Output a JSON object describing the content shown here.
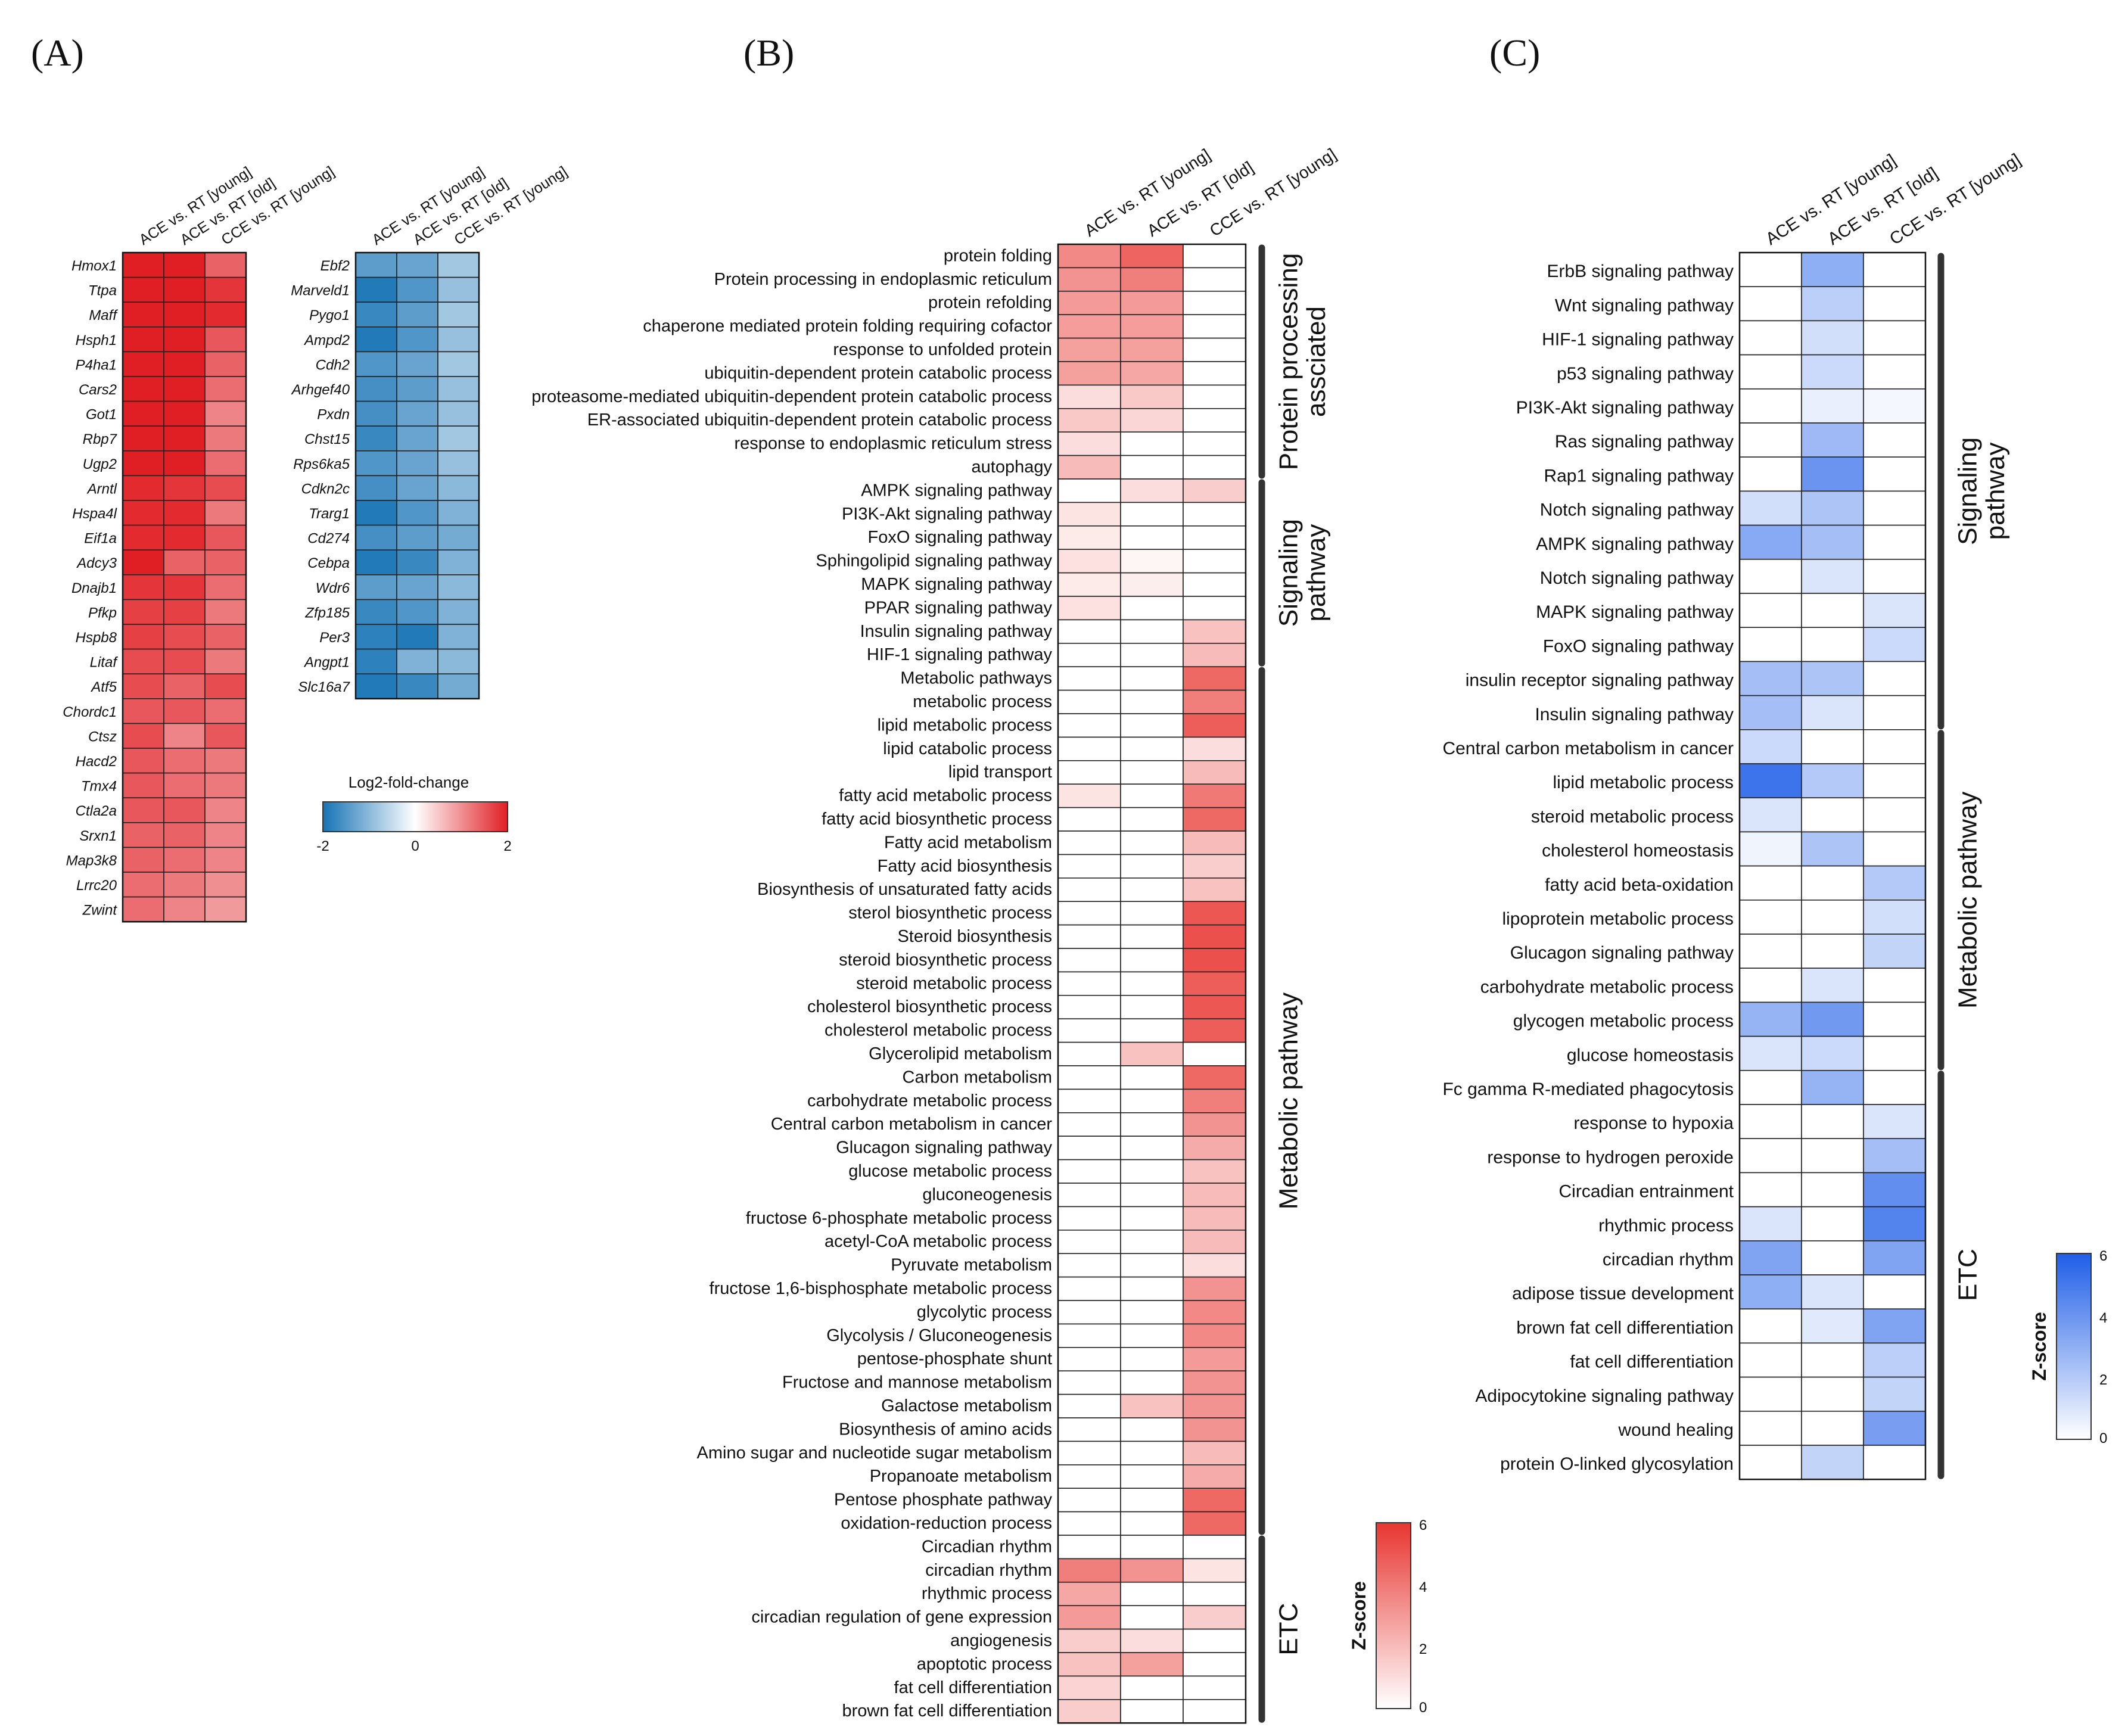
{
  "panel_labels": [
    "(A)",
    "(B)",
    "(C)"
  ],
  "chart_data": [
    {
      "id": "A_up",
      "type": "heatmap",
      "columns": [
        "ACE vs. RT [young]",
        "ACE vs. RT [old]",
        "CCE vs. RT [young]"
      ],
      "rows": [
        "Hmox1",
        "Ttpa",
        "Maff",
        "Hsph1",
        "P4ha1",
        "Cars2",
        "Got1",
        "Rbp7",
        "Ugp2",
        "Arntl",
        "Hspa4l",
        "Eif1a",
        "Adcy3",
        "Dnajb1",
        "Pfkp",
        "Hspb8",
        "Litaf",
        "Atf5",
        "Chordc1",
        "Ctsz",
        "Hacd2",
        "Tmx4",
        "Ctla2a",
        "Srxn1",
        "Map3k8",
        "Lrrc20",
        "Zwint"
      ],
      "values": [
        [
          2.0,
          2.0,
          1.4
        ],
        [
          2.0,
          2.0,
          1.8
        ],
        [
          2.0,
          2.0,
          1.9
        ],
        [
          2.0,
          2.0,
          1.5
        ],
        [
          2.0,
          2.0,
          1.4
        ],
        [
          2.0,
          2.0,
          1.3
        ],
        [
          2.0,
          2.0,
          1.1
        ],
        [
          2.0,
          2.0,
          1.2
        ],
        [
          2.0,
          2.0,
          1.3
        ],
        [
          1.9,
          1.8,
          1.6
        ],
        [
          1.9,
          1.9,
          1.2
        ],
        [
          1.9,
          1.9,
          1.5
        ],
        [
          2.0,
          1.4,
          1.4
        ],
        [
          1.8,
          1.8,
          1.3
        ],
        [
          1.7,
          1.7,
          1.2
        ],
        [
          1.7,
          1.6,
          1.4
        ],
        [
          1.6,
          1.6,
          1.2
        ],
        [
          1.6,
          1.4,
          1.6
        ],
        [
          1.5,
          1.5,
          1.3
        ],
        [
          1.6,
          1.1,
          1.5
        ],
        [
          1.5,
          1.3,
          1.2
        ],
        [
          1.5,
          1.3,
          1.2
        ],
        [
          1.5,
          1.5,
          1.1
        ],
        [
          1.4,
          1.4,
          1.1
        ],
        [
          1.4,
          1.3,
          1.1
        ],
        [
          1.3,
          1.2,
          1.0
        ],
        [
          1.3,
          1.1,
          0.9
        ]
      ]
    },
    {
      "id": "A_down",
      "type": "heatmap",
      "columns": [
        "ACE vs. RT [young]",
        "ACE vs. RT [old]",
        "CCE vs. RT [young]"
      ],
      "rows": [
        "Ebf2",
        "Marveld1",
        "Pygo1",
        "Ampd2",
        "Cdh2",
        "Arhgef40",
        "Pxdn",
        "Chst15",
        "Rps6ka5",
        "Cdkn2c",
        "Trarg1",
        "Cd274",
        "Cebpa",
        "Wdr6",
        "Zfp185",
        "Per3",
        "Angpt1",
        "Slc16a7"
      ],
      "values": [
        [
          -1.4,
          -1.3,
          -0.8
        ],
        [
          -1.9,
          -1.5,
          -0.9
        ],
        [
          -1.7,
          -1.4,
          -0.8
        ],
        [
          -1.9,
          -1.5,
          -0.9
        ],
        [
          -1.5,
          -1.3,
          -0.8
        ],
        [
          -1.6,
          -1.4,
          -0.9
        ],
        [
          -1.6,
          -1.3,
          -0.9
        ],
        [
          -1.7,
          -1.3,
          -0.8
        ],
        [
          -1.5,
          -1.3,
          -0.9
        ],
        [
          -1.6,
          -1.3,
          -1.0
        ],
        [
          -1.9,
          -1.5,
          -1.1
        ],
        [
          -1.6,
          -1.4,
          -1.2
        ],
        [
          -1.9,
          -1.7,
          -1.1
        ],
        [
          -1.4,
          -1.3,
          -1.0
        ],
        [
          -1.7,
          -1.5,
          -1.1
        ],
        [
          -1.8,
          -1.9,
          -1.1
        ],
        [
          -1.8,
          -1.1,
          -1.0
        ],
        [
          -1.9,
          -1.7,
          -1.2
        ]
      ]
    },
    {
      "id": "B",
      "type": "heatmap",
      "columns": [
        "ACE vs. RT [young]",
        "ACE vs. RT [old]",
        "CCE vs. RT [young]"
      ],
      "rows": [
        "protein folding",
        "Protein processing in endoplasmic reticulum",
        "protein refolding",
        "chaperone mediated protein folding requiring cofactor",
        "response to unfolded protein",
        "ubiquitin-dependent protein catabolic process",
        "proteasome-mediated ubiquitin-dependent protein catabolic process",
        "ER-associated ubiquitin-dependent protein catabolic process",
        "response to endoplasmic reticulum stress",
        "autophagy",
        "AMPK signaling pathway",
        "PI3K-Akt signaling pathway",
        "FoxO signaling pathway",
        "Sphingolipid signaling pathway",
        "MAPK signaling pathway",
        "PPAR signaling pathway",
        "Insulin signaling pathway",
        "HIF-1 signaling pathway",
        "Metabolic pathways",
        "metabolic process",
        "lipid metabolic process",
        "lipid catabolic process",
        "lipid transport",
        "fatty acid metabolic process",
        "fatty acid biosynthetic process",
        "Fatty acid metabolism",
        "Fatty acid biosynthesis",
        "Biosynthesis of unsaturated fatty acids",
        "sterol biosynthetic process",
        "Steroid biosynthesis",
        "steroid biosynthetic process",
        "steroid metabolic process",
        "cholesterol biosynthetic process",
        "cholesterol metabolic process",
        "Glycerolipid metabolism",
        "Carbon metabolism",
        "carbohydrate metabolic process",
        "Central carbon metabolism in cancer",
        "Glucagon signaling pathway",
        "glucose metabolic process",
        "gluconeogenesis",
        "fructose 6-phosphate metabolic process",
        "acetyl-CoA metabolic process",
        "Pyruvate metabolism",
        "fructose 1,6-bisphosphate metabolic process",
        "glycolytic process",
        "Glycolysis / Gluconeogenesis",
        "pentose-phosphate shunt",
        "Fructose and mannose metabolism",
        "Galactose metabolism",
        "Biosynthesis of amino acids",
        "Amino sugar and nucleotide sugar metabolism",
        "Propanoate metabolism",
        "Pentose phosphate pathway",
        "oxidation-reduction process",
        "Circadian rhythm",
        "circadian rhythm",
        "rhythmic process",
        "circadian regulation of gene expression",
        "angiogenesis",
        "apoptotic process",
        "fat cell differentiation",
        "brown fat cell differentiation"
      ],
      "values": [
        [
          3.5,
          4.6,
          0
        ],
        [
          3.2,
          3.8,
          0
        ],
        [
          3.0,
          3.0,
          0
        ],
        [
          2.9,
          2.9,
          0
        ],
        [
          2.8,
          2.8,
          0
        ],
        [
          2.8,
          2.6,
          0
        ],
        [
          1.0,
          1.6,
          0
        ],
        [
          1.6,
          1.2,
          0
        ],
        [
          1.0,
          0,
          0
        ],
        [
          2.0,
          0,
          0
        ],
        [
          0,
          1.0,
          1.5
        ],
        [
          0.8,
          0,
          0
        ],
        [
          0.6,
          0,
          0
        ],
        [
          0.9,
          0.3,
          0
        ],
        [
          0.6,
          0.5,
          0
        ],
        [
          0.9,
          0,
          0
        ],
        [
          0,
          0,
          1.8
        ],
        [
          0,
          0,
          2.0
        ],
        [
          0,
          0,
          4.5
        ],
        [
          0,
          0,
          3.8
        ],
        [
          0,
          0,
          4.8
        ],
        [
          0,
          0,
          1.0
        ],
        [
          0,
          0,
          2.0
        ],
        [
          0.8,
          0,
          4.0
        ],
        [
          0,
          0,
          4.5
        ],
        [
          0,
          0,
          2.0
        ],
        [
          0,
          0,
          1.5
        ],
        [
          0,
          0,
          1.8
        ],
        [
          0,
          0,
          5.0
        ],
        [
          0,
          0,
          5.2
        ],
        [
          0,
          0,
          5.2
        ],
        [
          0,
          0,
          4.8
        ],
        [
          0,
          0,
          5.0
        ],
        [
          0,
          0,
          4.8
        ],
        [
          0,
          1.8,
          0
        ],
        [
          0,
          0,
          4.5
        ],
        [
          0,
          0,
          3.8
        ],
        [
          0,
          0,
          3.2
        ],
        [
          0,
          0,
          2.5
        ],
        [
          0,
          0,
          1.8
        ],
        [
          0,
          0,
          2.0
        ],
        [
          0,
          0,
          2.0
        ],
        [
          0,
          0,
          2.0
        ],
        [
          0,
          0,
          1.0
        ],
        [
          0,
          0,
          3.2
        ],
        [
          0,
          0,
          3.5
        ],
        [
          0,
          0,
          3.5
        ],
        [
          0,
          0,
          3.0
        ],
        [
          0,
          0,
          3.2
        ],
        [
          0,
          1.8,
          3.2
        ],
        [
          0,
          0,
          3.2
        ],
        [
          0,
          0,
          2.0
        ],
        [
          0,
          0,
          2.5
        ],
        [
          0,
          0,
          4.5
        ],
        [
          0,
          0,
          4.5
        ],
        [
          0,
          0,
          0
        ],
        [
          3.8,
          3.2,
          0.8
        ],
        [
          2.6,
          0,
          0
        ],
        [
          3.0,
          0,
          1.5
        ],
        [
          1.5,
          1.0,
          0
        ],
        [
          1.8,
          2.8,
          0
        ],
        [
          1.3,
          0,
          0
        ],
        [
          1.5,
          0,
          0
        ]
      ],
      "groups": [
        {
          "label_lines": [
            "Protein processing",
            "assciated"
          ],
          "from": 0,
          "to": 9
        },
        {
          "label_lines": [
            "Signaling",
            "pathway"
          ],
          "from": 10,
          "to": 17
        },
        {
          "label_lines": [
            "Metabolic pathway"
          ],
          "from": 18,
          "to": 54
        },
        {
          "label_lines": [
            "ETC"
          ],
          "from": 55,
          "to": 62
        }
      ],
      "colorbar": {
        "title": "Z-score",
        "ticks": [
          "6",
          "4",
          "2",
          "0"
        ],
        "range": [
          0,
          6
        ],
        "color": "#e83530"
      }
    },
    {
      "id": "C",
      "type": "heatmap",
      "columns": [
        "ACE vs. RT [young]",
        "ACE vs. RT [old]",
        "CCE vs. RT [young]"
      ],
      "rows": [
        "ErbB signaling pathway",
        "Wnt signaling pathway",
        "HIF-1 signaling pathway",
        "p53 signaling pathway",
        "PI3K-Akt signaling pathway",
        "Ras signaling pathway",
        "Rap1 signaling pathway",
        "Notch signaling pathway",
        "AMPK signaling pathway",
        "Notch signaling pathway",
        "MAPK signaling pathway",
        "FoxO signaling pathway",
        "insulin receptor signaling pathway",
        "Insulin signaling pathway",
        "Central carbon metabolism in cancer",
        "lipid metabolic process",
        "steroid metabolic process",
        "cholesterol homeostasis",
        "fatty acid beta-oxidation",
        "lipoprotein metabolic process",
        "Glucagon signaling pathway",
        "carbohydrate metabolic process",
        "glycogen metabolic process",
        "glucose homeostasis",
        "Fc gamma R-mediated phagocytosis",
        "response to hypoxia",
        "response to hydrogen peroxide",
        "Circadian entrainment",
        "rhythmic process",
        "circadian rhythm",
        "adipose tissue development",
        "brown fat cell differentiation",
        "fat cell differentiation",
        "Adipocytokine signaling pathway",
        "wound healing",
        "protein O-linked glycosylation"
      ],
      "values": [
        [
          0,
          3.0,
          0
        ],
        [
          0,
          1.8,
          0
        ],
        [
          0,
          1.2,
          0
        ],
        [
          0,
          1.4,
          0
        ],
        [
          0,
          0.6,
          0.3
        ],
        [
          0,
          2.6,
          0
        ],
        [
          0,
          4.0,
          0
        ],
        [
          1.2,
          2.2,
          0
        ],
        [
          3.2,
          2.4,
          0
        ],
        [
          0,
          1.0,
          0
        ],
        [
          0,
          0,
          1.0
        ],
        [
          0,
          0,
          1.4
        ],
        [
          2.4,
          2.2,
          0
        ],
        [
          2.4,
          1.0,
          0
        ],
        [
          1.4,
          0,
          0
        ],
        [
          5.2,
          2.0,
          0
        ],
        [
          1.0,
          0,
          0
        ],
        [
          0.4,
          2.2,
          0
        ],
        [
          0,
          0,
          2.0
        ],
        [
          0,
          0,
          1.2
        ],
        [
          0,
          0,
          1.6
        ],
        [
          0,
          1.0,
          0
        ],
        [
          2.8,
          3.8,
          0
        ],
        [
          1.0,
          1.4,
          0
        ],
        [
          0,
          2.8,
          0
        ],
        [
          0,
          0,
          1.0
        ],
        [
          0,
          0,
          2.4
        ],
        [
          0,
          0,
          4.2
        ],
        [
          1.0,
          0,
          4.6
        ],
        [
          3.4,
          0,
          3.4
        ],
        [
          3.0,
          1.0,
          0
        ],
        [
          0,
          0.8,
          3.4
        ],
        [
          0,
          0,
          1.8
        ],
        [
          0,
          0,
          1.6
        ],
        [
          0,
          0,
          3.6
        ],
        [
          0,
          1.6,
          0
        ]
      ],
      "groups": [
        {
          "label_lines": [
            "Signaling",
            "pathway"
          ],
          "from": 0,
          "to": 13
        },
        {
          "label_lines": [
            "Metabolic pathway"
          ],
          "from": 14,
          "to": 23
        },
        {
          "label_lines": [
            "ETC"
          ],
          "from": 24,
          "to": 35
        }
      ],
      "colorbar": {
        "title": "Z-score",
        "ticks": [
          "6",
          "4",
          "2",
          "0"
        ],
        "range": [
          0,
          6
        ],
        "color": "#1f5ee8"
      }
    }
  ],
  "legend_A": {
    "title": "Log2-fold-change",
    "ticks": [
      "-2",
      "0",
      "2"
    ],
    "range": [
      -2,
      2
    ],
    "colors": {
      "low": "#1673b5",
      "mid": "#ffffff",
      "high": "#e01f24"
    }
  }
}
